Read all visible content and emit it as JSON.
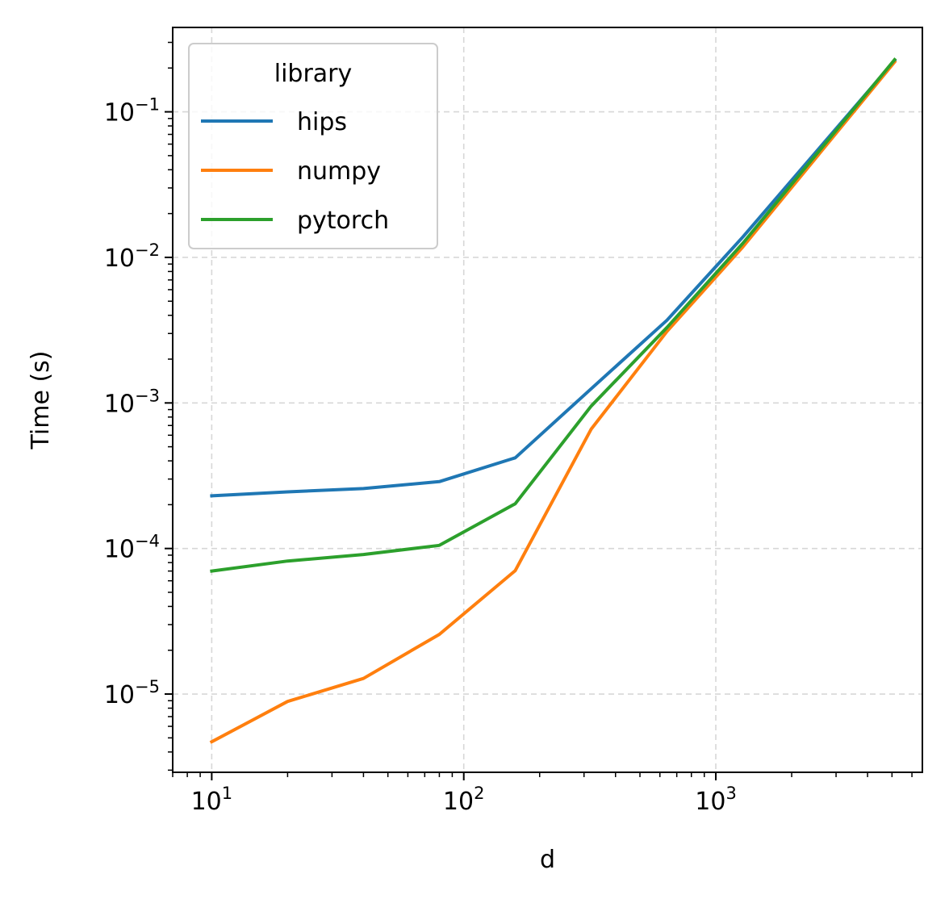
{
  "chart_data": {
    "type": "line",
    "xlabel": "d",
    "ylabel": "Time (s)",
    "xscale": "log",
    "yscale": "log",
    "xlim": [
      7.0,
      6600
    ],
    "ylim": [
      2.9e-06,
      0.38
    ],
    "grid": true,
    "x_ticks": [
      {
        "base": "10",
        "exp": "1",
        "value": 10
      },
      {
        "base": "10",
        "exp": "2",
        "value": 100
      },
      {
        "base": "10",
        "exp": "3",
        "value": 1000
      }
    ],
    "y_ticks": [
      {
        "base": "10",
        "exp": "−5",
        "value": 1e-05
      },
      {
        "base": "10",
        "exp": "−4",
        "value": 0.0001
      },
      {
        "base": "10",
        "exp": "−3",
        "value": 0.001
      },
      {
        "base": "10",
        "exp": "−2",
        "value": 0.01
      },
      {
        "base": "10",
        "exp": "−1",
        "value": 0.1
      }
    ],
    "legend": {
      "title": "library",
      "placement": "upper-left"
    },
    "series": [
      {
        "name": "hips",
        "color": "#1f77b4",
        "x": [
          10,
          20,
          40,
          80,
          160,
          320,
          640,
          1280,
          5120
        ],
        "y": [
          0.00023,
          0.000245,
          0.000258,
          0.000288,
          0.00042,
          0.00125,
          0.0037,
          0.0138,
          0.225
        ]
      },
      {
        "name": "numpy",
        "color": "#ff7f0e",
        "x": [
          10,
          20,
          40,
          80,
          160,
          320,
          640,
          1280,
          5120
        ],
        "y": [
          4.7e-06,
          8.9e-06,
          1.28e-05,
          2.57e-05,
          7.05e-05,
          0.00066,
          0.0031,
          0.0118,
          0.22
        ]
      },
      {
        "name": "pytorch",
        "color": "#2ca02c",
        "x": [
          10,
          20,
          40,
          80,
          160,
          320,
          640,
          1280,
          5120
        ],
        "y": [
          7e-05,
          8.2e-05,
          9.1e-05,
          0.000105,
          0.000203,
          0.00095,
          0.0033,
          0.0125,
          0.228
        ]
      }
    ]
  }
}
